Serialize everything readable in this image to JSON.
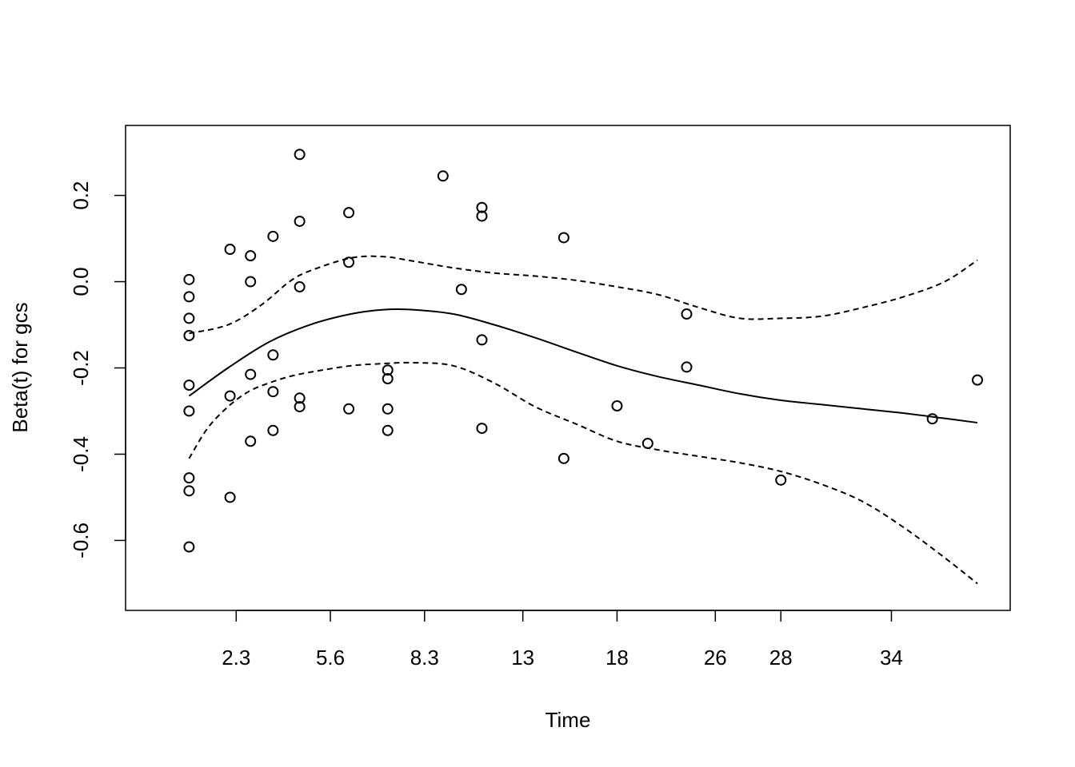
{
  "chart_data": {
    "type": "scatter",
    "xlabel": "Time",
    "ylabel": "Beta(t) for gcs",
    "x_tick_labels": [
      "2.3",
      "5.6",
      "8.3",
      "13",
      "18",
      "26",
      "28",
      "34"
    ],
    "x_tick_positions": [
      2.2,
      4.5,
      6.8,
      9.2,
      11.5,
      13.9,
      15.5,
      18.2
    ],
    "xlim": [
      0.3,
      20.3
    ],
    "y_ticks": [
      -0.6,
      -0.4,
      -0.2,
      0.0,
      0.2
    ],
    "y_tick_labels": [
      "-0.6",
      "-0.4",
      "-0.2",
      "0.0",
      "0.2"
    ],
    "ylim": [
      -0.74,
      0.34
    ],
    "points": [
      {
        "x": 1.05,
        "y": 0.005
      },
      {
        "x": 1.05,
        "y": -0.035
      },
      {
        "x": 1.05,
        "y": -0.085
      },
      {
        "x": 1.05,
        "y": -0.125
      },
      {
        "x": 1.05,
        "y": -0.24
      },
      {
        "x": 1.05,
        "y": -0.3
      },
      {
        "x": 1.05,
        "y": -0.455
      },
      {
        "x": 1.05,
        "y": -0.485
      },
      {
        "x": 1.05,
        "y": -0.615
      },
      {
        "x": 2.05,
        "y": 0.075
      },
      {
        "x": 2.05,
        "y": -0.265
      },
      {
        "x": 2.05,
        "y": -0.5
      },
      {
        "x": 2.55,
        "y": 0.06
      },
      {
        "x": 2.55,
        "y": 0.0
      },
      {
        "x": 2.55,
        "y": -0.215
      },
      {
        "x": 2.55,
        "y": -0.37
      },
      {
        "x": 3.1,
        "y": 0.105
      },
      {
        "x": 3.1,
        "y": -0.17
      },
      {
        "x": 3.1,
        "y": -0.255
      },
      {
        "x": 3.1,
        "y": -0.345
      },
      {
        "x": 3.75,
        "y": 0.295
      },
      {
        "x": 3.75,
        "y": 0.14
      },
      {
        "x": 3.75,
        "y": -0.012
      },
      {
        "x": 3.75,
        "y": -0.27
      },
      {
        "x": 3.75,
        "y": -0.29
      },
      {
        "x": 4.95,
        "y": 0.16
      },
      {
        "x": 4.95,
        "y": 0.045
      },
      {
        "x": 4.95,
        "y": -0.295
      },
      {
        "x": 5.9,
        "y": -0.205
      },
      {
        "x": 5.9,
        "y": -0.225
      },
      {
        "x": 5.9,
        "y": -0.295
      },
      {
        "x": 5.9,
        "y": -0.345
      },
      {
        "x": 7.25,
        "y": 0.245
      },
      {
        "x": 7.7,
        "y": -0.018
      },
      {
        "x": 8.2,
        "y": 0.172
      },
      {
        "x": 8.2,
        "y": 0.152
      },
      {
        "x": 8.2,
        "y": -0.135
      },
      {
        "x": 8.2,
        "y": -0.34
      },
      {
        "x": 10.2,
        "y": 0.102
      },
      {
        "x": 10.2,
        "y": -0.41
      },
      {
        "x": 11.5,
        "y": -0.288
      },
      {
        "x": 12.25,
        "y": -0.375
      },
      {
        "x": 13.2,
        "y": -0.075
      },
      {
        "x": 13.2,
        "y": -0.198
      },
      {
        "x": 15.5,
        "y": -0.46
      },
      {
        "x": 19.2,
        "y": -0.318
      },
      {
        "x": 20.3,
        "y": -0.228
      }
    ],
    "fit": {
      "x": [
        1.05,
        2.0,
        3.0,
        4.0,
        5.0,
        5.8,
        6.5,
        7.5,
        8.5,
        9.5,
        10.5,
        11.5,
        12.5,
        13.5,
        14.5,
        15.5,
        16.5,
        17.5,
        18.5,
        19.5,
        20.3
      ],
      "y": [
        -0.265,
        -0.2,
        -0.14,
        -0.1,
        -0.075,
        -0.065,
        -0.065,
        -0.075,
        -0.1,
        -0.13,
        -0.163,
        -0.195,
        -0.22,
        -0.24,
        -0.26,
        -0.275,
        -0.285,
        -0.295,
        -0.305,
        -0.317,
        -0.327
      ]
    },
    "upper_ci": {
      "x": [
        1.05,
        2.0,
        2.8,
        3.5,
        4.0,
        5.0,
        5.8,
        6.5,
        7.5,
        8.5,
        9.5,
        10.5,
        11.5,
        12.5,
        13.5,
        14.5,
        15.5,
        16.5,
        17.5,
        18.5,
        19.5,
        20.3
      ],
      "y": [
        -0.12,
        -0.1,
        -0.055,
        0.0,
        0.025,
        0.055,
        0.058,
        0.048,
        0.032,
        0.02,
        0.013,
        0.003,
        -0.012,
        -0.03,
        -0.06,
        -0.085,
        -0.085,
        -0.08,
        -0.06,
        -0.035,
        0.0,
        0.05
      ]
    },
    "lower_ci": {
      "x": [
        1.05,
        1.5,
        2.0,
        2.5,
        3.0,
        3.5,
        4.0,
        5.0,
        5.8,
        6.5,
        7.5,
        8.5,
        9.5,
        10.5,
        11.5,
        12.5,
        13.5,
        14.5,
        15.5,
        16.5,
        17.5,
        18.5,
        19.5,
        20.3
      ],
      "y": [
        -0.41,
        -0.34,
        -0.29,
        -0.255,
        -0.235,
        -0.22,
        -0.21,
        -0.195,
        -0.19,
        -0.188,
        -0.195,
        -0.235,
        -0.29,
        -0.33,
        -0.37,
        -0.39,
        -0.405,
        -0.42,
        -0.44,
        -0.47,
        -0.51,
        -0.57,
        -0.64,
        -0.7
      ]
    }
  }
}
